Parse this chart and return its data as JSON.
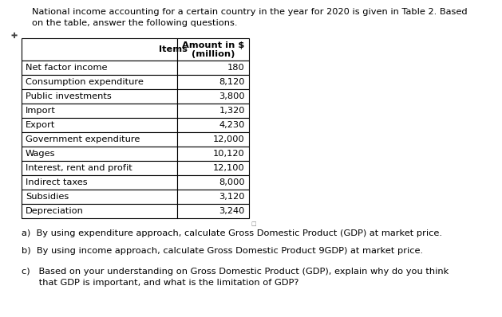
{
  "title_line1": "National income accounting for a certain country in the year for 2020 is given in Table 2. Based",
  "title_line2": "on the table, answer the following questions.",
  "col1_header": "Items",
  "col2_header": "Amount in $\n(million)",
  "rows": [
    [
      "Net factor income",
      "180"
    ],
    [
      "Consumption expenditure",
      "8,120"
    ],
    [
      "Public investments",
      "3,800"
    ],
    [
      "Import",
      "1,320"
    ],
    [
      "Export",
      "4,230"
    ],
    [
      "Government expenditure",
      "12,000"
    ],
    [
      "Wages",
      "10,120"
    ],
    [
      "Interest, rent and profit",
      "12,100"
    ],
    [
      "Indirect taxes",
      "8,000"
    ],
    [
      "Subsidies",
      "3,120"
    ],
    [
      "Depreciation",
      "3,240"
    ]
  ],
  "q_a": "a)  By using expenditure approach, calculate Gross Domestic Product (GDP) at market price.",
  "q_b": "b)  By using income approach, calculate Gross Domestic Product 9GDP) at market price.",
  "q_c1": "c)   Based on your understanding on Gross Domestic Product (GDP), explain why do you think",
  "q_c2": "      that GDP is important, and what is the limitation of GDP?",
  "bg_color": "#ffffff",
  "text_color": "#000000",
  "font_size": 8.2,
  "table_font_size": 8.2
}
